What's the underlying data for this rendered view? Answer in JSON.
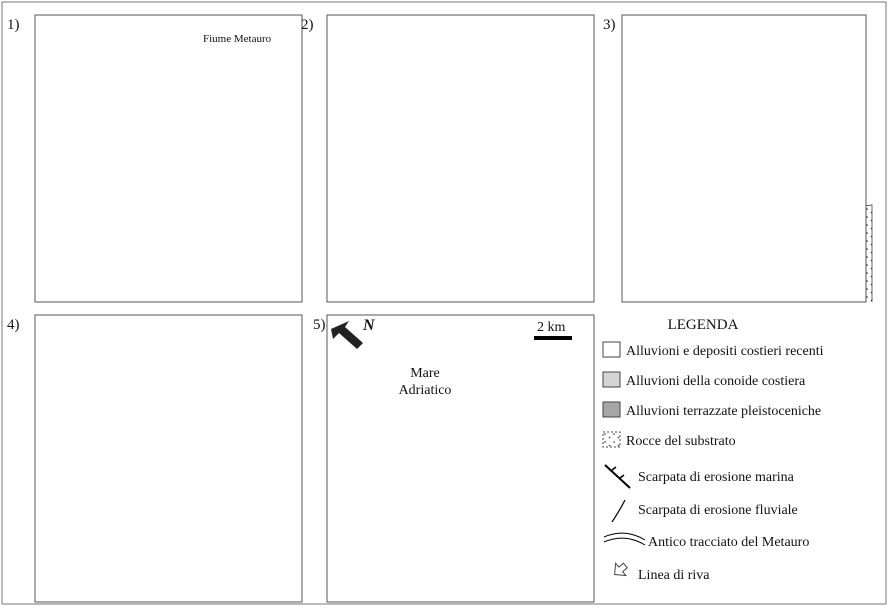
{
  "panels": [
    {
      "label": "1)",
      "annotation": "Fiume Metauro"
    },
    {
      "label": "2)"
    },
    {
      "label": "3)"
    },
    {
      "label": "4)"
    },
    {
      "label": "5)",
      "north": "N",
      "scale": "2 km",
      "sea": [
        "Mare",
        "Adriatico"
      ]
    }
  ],
  "legend": {
    "title": "LEGENDA",
    "items": [
      "Alluvioni e depositi costieri recenti",
      "Alluvioni della conoide costiera",
      "Alluvioni terrazzate pleistoceniche",
      "Rocce del substrato",
      "Scarpata di erosione marina",
      "Scarpata di erosione fluviale",
      "Antico tracciato del Metauro",
      "Linea di riva"
    ]
  }
}
